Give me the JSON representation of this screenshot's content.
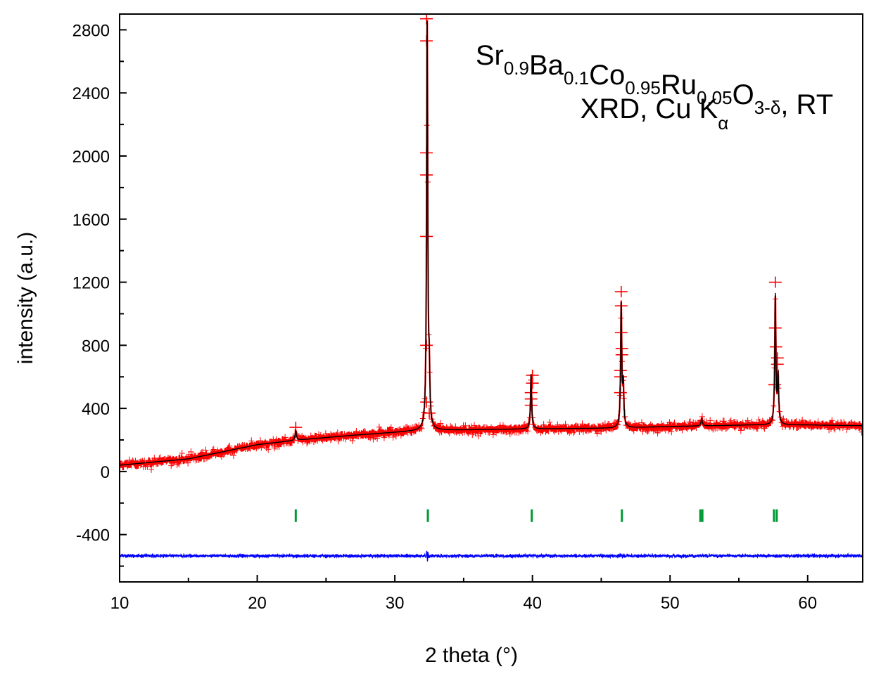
{
  "chart_data": {
    "type": "line",
    "title_line1": {
      "parts": [
        {
          "t": "Sr",
          "sub": "0.9"
        },
        {
          "t": "Ba",
          "sub": "0.1"
        },
        {
          "t": "Co",
          "sub": "0.95"
        },
        {
          "t": "Ru",
          "sub": "0.05"
        },
        {
          "t": "O",
          "sub": "3-δ"
        },
        {
          "t": ", RT",
          "sub": ""
        }
      ]
    },
    "title_line2": {
      "text": "XRD, Cu K",
      "sub": "α"
    },
    "xlabel": "2 theta (°)",
    "ylabel": "intensity (a.u.)",
    "xlim": [
      10,
      64
    ],
    "ylim": [
      -700,
      2900
    ],
    "x_ticks": [
      10,
      20,
      30,
      40,
      50,
      60
    ],
    "y_ticks": [
      -400,
      0,
      400,
      800,
      1200,
      1600,
      2000,
      2400,
      2800
    ],
    "background": [
      [
        10,
        40
      ],
      [
        15,
        80
      ],
      [
        20,
        170
      ],
      [
        23,
        200
      ],
      [
        27,
        230
      ],
      [
        32,
        260
      ],
      [
        36,
        265
      ],
      [
        40,
        270
      ],
      [
        46,
        275
      ],
      [
        50,
        285
      ],
      [
        56,
        295
      ],
      [
        60,
        295
      ],
      [
        64,
        290
      ]
    ],
    "peaks": [
      {
        "x": 22.8,
        "height": 60,
        "width": 0.12
      },
      {
        "x": 32.35,
        "height": 2600,
        "width": 0.1
      },
      {
        "x": 32.5,
        "height": 300,
        "width": 0.1
      },
      {
        "x": 39.9,
        "height": 350,
        "width": 0.1
      },
      {
        "x": 46.45,
        "height": 780,
        "width": 0.1
      },
      {
        "x": 46.6,
        "height": 250,
        "width": 0.1
      },
      {
        "x": 52.3,
        "height": 45,
        "width": 0.12
      },
      {
        "x": 57.65,
        "height": 820,
        "width": 0.1
      },
      {
        "x": 57.85,
        "height": 300,
        "width": 0.1
      }
    ],
    "bragg_positions": [
      22.8,
      32.4,
      39.95,
      46.5,
      52.2,
      52.35,
      57.55,
      57.75
    ],
    "bragg_level": -280,
    "difference_offset": -535,
    "observed_markers": [
      {
        "x": 22.8,
        "y": 280
      },
      {
        "x": 32.3,
        "y": 2870
      },
      {
        "x": 32.3,
        "y": 2730
      },
      {
        "x": 32.3,
        "y": 2020
      },
      {
        "x": 32.3,
        "y": 1880
      },
      {
        "x": 32.3,
        "y": 1490
      },
      {
        "x": 32.3,
        "y": 800
      },
      {
        "x": 32.3,
        "y": 440
      },
      {
        "x": 32.5,
        "y": 370
      },
      {
        "x": 40.0,
        "y": 610
      },
      {
        "x": 40.0,
        "y": 560
      },
      {
        "x": 39.9,
        "y": 500
      },
      {
        "x": 39.9,
        "y": 460
      },
      {
        "x": 39.9,
        "y": 420
      },
      {
        "x": 46.45,
        "y": 1140
      },
      {
        "x": 46.45,
        "y": 1050
      },
      {
        "x": 46.45,
        "y": 880
      },
      {
        "x": 46.5,
        "y": 780
      },
      {
        "x": 46.5,
        "y": 740
      },
      {
        "x": 46.4,
        "y": 640
      },
      {
        "x": 46.4,
        "y": 600
      },
      {
        "x": 46.4,
        "y": 500
      },
      {
        "x": 57.65,
        "y": 1200
      },
      {
        "x": 57.65,
        "y": 910
      },
      {
        "x": 57.7,
        "y": 790
      },
      {
        "x": 57.8,
        "y": 720
      },
      {
        "x": 57.8,
        "y": 680
      },
      {
        "x": 57.6,
        "y": 550
      }
    ],
    "colors": {
      "observed": "#ff0000",
      "calculated": "#000000",
      "difference": "#0000ff",
      "bragg": "#009933"
    }
  }
}
